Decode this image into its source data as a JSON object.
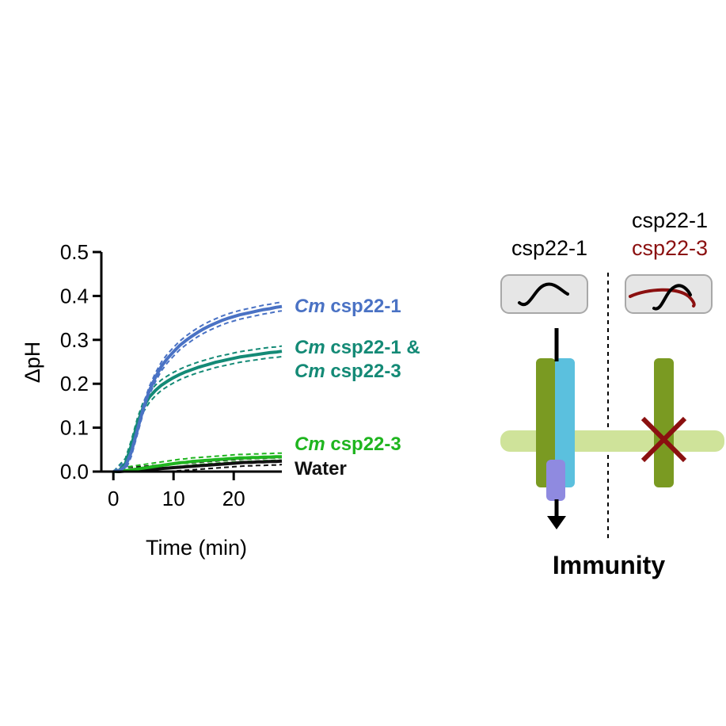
{
  "chart_data": {
    "type": "line",
    "xlabel": "Time (min)",
    "ylabel": "ΔpH",
    "xlim": [
      -2,
      28
    ],
    "ylim": [
      0,
      0.5
    ],
    "xticks": [
      0,
      10,
      20
    ],
    "yticks": [
      0.0,
      0.1,
      0.2,
      0.3,
      0.4,
      0.5
    ],
    "xtick_labels": [
      "0",
      "10",
      "20"
    ],
    "ytick_labels": [
      "0.0",
      "0.1",
      "0.2",
      "0.3",
      "0.4",
      "0.5"
    ],
    "error_bands": "dashed",
    "series": [
      {
        "prefix": "Cm",
        "label": "csp22-1",
        "color": "#4a72c4",
        "x": [
          0,
          1,
          2,
          3,
          4,
          5,
          6,
          7,
          8,
          9,
          10,
          11,
          12,
          13,
          14,
          15,
          16,
          17,
          18,
          19,
          20,
          21,
          22,
          23,
          24,
          25,
          26,
          27,
          28
        ],
        "y": [
          0.0,
          0.002,
          0.012,
          0.045,
          0.095,
          0.145,
          0.185,
          0.215,
          0.24,
          0.258,
          0.273,
          0.287,
          0.298,
          0.308,
          0.317,
          0.325,
          0.332,
          0.338,
          0.344,
          0.349,
          0.353,
          0.357,
          0.36,
          0.363,
          0.366,
          0.369,
          0.371,
          0.374,
          0.376
        ],
        "spread": 0.01
      },
      {
        "prefix": "Cm",
        "label": "csp22-1 &",
        "prefix2": "Cm",
        "label2": "csp22-3",
        "color": "#148a76",
        "x": [
          0,
          1,
          2,
          3,
          4,
          5,
          6,
          7,
          8,
          9,
          10,
          11,
          12,
          13,
          14,
          15,
          16,
          17,
          18,
          19,
          20,
          21,
          22,
          23,
          24,
          25,
          26,
          27,
          28
        ],
        "y": [
          0.0,
          0.003,
          0.018,
          0.06,
          0.11,
          0.148,
          0.17,
          0.185,
          0.197,
          0.206,
          0.214,
          0.221,
          0.227,
          0.232,
          0.237,
          0.241,
          0.245,
          0.249,
          0.252,
          0.255,
          0.258,
          0.261,
          0.263,
          0.265,
          0.267,
          0.269,
          0.271,
          0.272,
          0.274
        ],
        "spread": 0.012
      },
      {
        "prefix": "Cm",
        "label": "csp22-3",
        "color": "#1fb51f",
        "x": [
          0,
          1,
          2,
          3,
          4,
          5,
          6,
          7,
          8,
          9,
          10,
          11,
          12,
          13,
          14,
          15,
          16,
          17,
          18,
          19,
          20,
          21,
          22,
          23,
          24,
          25,
          26,
          27,
          28
        ],
        "y": [
          0.0,
          0.001,
          0.002,
          0.004,
          0.006,
          0.008,
          0.01,
          0.012,
          0.014,
          0.016,
          0.018,
          0.02,
          0.021,
          0.023,
          0.024,
          0.025,
          0.026,
          0.027,
          0.028,
          0.029,
          0.03,
          0.031,
          0.031,
          0.032,
          0.032,
          0.033,
          0.033,
          0.034,
          0.034
        ],
        "spread": 0.008
      },
      {
        "prefix": "",
        "label": "Water",
        "color": "#111111",
        "x": [
          0,
          1,
          2,
          3,
          4,
          5,
          6,
          7,
          8,
          9,
          10,
          11,
          12,
          13,
          14,
          15,
          16,
          17,
          18,
          19,
          20,
          21,
          22,
          23,
          24,
          25,
          26,
          27,
          28
        ],
        "y": [
          0.0,
          0.0,
          0.001,
          0.002,
          0.003,
          0.004,
          0.005,
          0.006,
          0.007,
          0.008,
          0.009,
          0.01,
          0.011,
          0.012,
          0.013,
          0.014,
          0.015,
          0.016,
          0.017,
          0.018,
          0.019,
          0.02,
          0.021,
          0.021,
          0.022,
          0.022,
          0.023,
          0.023,
          0.024
        ],
        "spread": 0.008
      }
    ]
  },
  "schematic": {
    "left_label": "csp22-1",
    "right_label_1": "csp22-1",
    "right_label_2": "csp22-3",
    "output_label": "Immunity",
    "colors": {
      "peptide_1": "#000000",
      "peptide_3": "#8b1010",
      "receptor": "#7a9a22",
      "coreceptor": "#5bc0de",
      "kinase": "#8f8ae0",
      "membrane": "#cfe39a",
      "blocked_x": "#8b1010",
      "box_fill": "#e6e6e6",
      "box_stroke": "#a8a8a8"
    }
  }
}
